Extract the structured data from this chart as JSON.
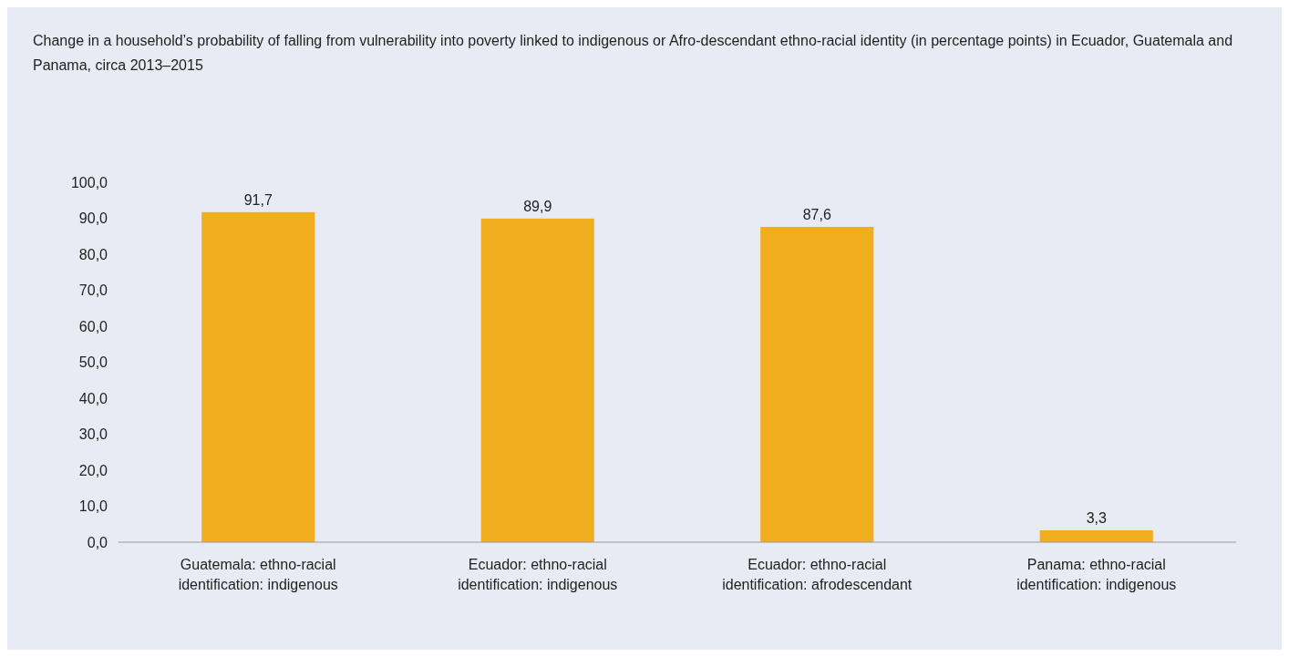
{
  "chart_data": {
    "type": "bar",
    "title": "Change in a household’s probability of falling from vulnerability into poverty linked to indigenous or Afro-descendant ethno-racial identity (in percentage points) in Ecuador, Guatemala and Panama, circa 2013–2015",
    "categories": [
      "Guatemala: ethno-racial identification: indigenous",
      "Ecuador: ethno-racial identification: indigenous",
      "Ecuador: ethno-racial identification: afrodescendant",
      "Panama: ethno-racial identification: indigenous"
    ],
    "values": [
      91.7,
      89.9,
      87.6,
      3.3
    ],
    "color": "#f0ae1e",
    "value_labels": [
      "91,7",
      "89,9",
      "87,6",
      "3,3"
    ],
    "ylim": [
      0,
      100
    ],
    "yticks": [
      {
        "value": 0,
        "label": "0,0"
      },
      {
        "value": 10,
        "label": "10,0"
      },
      {
        "value": 20,
        "label": "20,0"
      },
      {
        "value": 30,
        "label": "30,0"
      },
      {
        "value": 40,
        "label": "40,0"
      },
      {
        "value": 50,
        "label": "50,0"
      },
      {
        "value": 60,
        "label": "60,0"
      },
      {
        "value": 70,
        "label": "70,0"
      },
      {
        "value": 80,
        "label": "80,0"
      },
      {
        "value": 90,
        "label": "90,0"
      },
      {
        "value": 100,
        "label": "100,0"
      }
    ],
    "grid": false
  }
}
